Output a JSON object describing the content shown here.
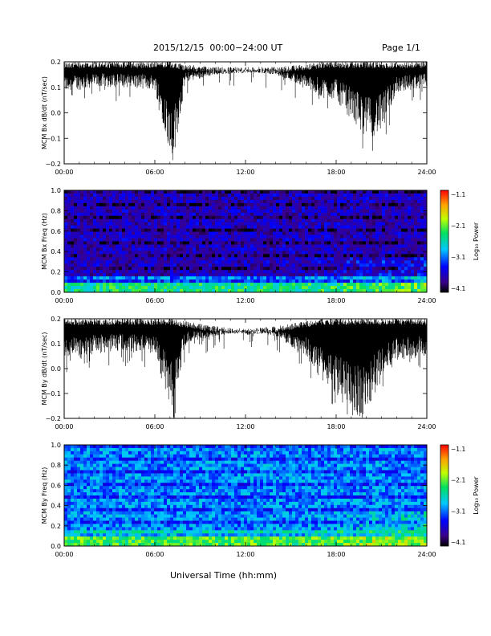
{
  "header": {
    "title": "2015/12/15  00:00−24:00 UT",
    "page_label": "Page 1/1"
  },
  "xaxis": {
    "label": "Universal Time (hh:mm)",
    "ticks": [
      "00:00",
      "06:00",
      "12:00",
      "18:00",
      "24:00"
    ],
    "range_hours": [
      0,
      24
    ]
  },
  "colorbar": {
    "label": "Log₁₀ Power",
    "ticks": [
      "−1.1",
      "−2.1",
      "−3.1",
      "−4.1"
    ],
    "range": [
      -4.1,
      -1.1
    ]
  },
  "chart_data": [
    {
      "type": "line",
      "ylabel": "MCM Bx dB/dt (nT/sec)",
      "ylim": [
        -0.2,
        0.2
      ],
      "yticks": [
        "0.2",
        "0.1",
        "0.0",
        "−0.1",
        "−0.2"
      ],
      "x": [
        0,
        2,
        4,
        6,
        7.2,
        8,
        10,
        12,
        14,
        16,
        17,
        18,
        19,
        20,
        21,
        22,
        24
      ],
      "upper_envelope": [
        0.2,
        0.2,
        0.2,
        0.2,
        0.2,
        0.19,
        0.18,
        0.18,
        0.18,
        0.19,
        0.2,
        0.2,
        0.2,
        0.2,
        0.2,
        0.2,
        0.2
      ],
      "lower_envelope": [
        0.08,
        0.1,
        0.1,
        0.09,
        -0.2,
        0.12,
        0.15,
        0.16,
        0.15,
        0.1,
        0.06,
        0.05,
        -0.02,
        -0.1,
        -0.08,
        0.08,
        0.1
      ]
    },
    {
      "type": "heatmap",
      "ylabel": "MCM Bx Freq (Hz)",
      "ylim": [
        0,
        1.0
      ],
      "yticks": [
        "1.0",
        "0.8",
        "0.6",
        "0.4",
        "0.2",
        "0.0"
      ],
      "background_power": -3.6,
      "low_frequency_power": -2.6
    },
    {
      "type": "line",
      "ylabel": "MCM By dB/dt (nT/sec)",
      "ylim": [
        -0.2,
        0.2
      ],
      "yticks": [
        "0.2",
        "0.1",
        "0.0",
        "−0.1",
        "−0.2"
      ],
      "x": [
        0,
        2,
        4,
        6,
        7.2,
        8,
        10,
        12,
        14,
        16,
        17,
        18,
        19,
        20,
        21,
        22,
        24
      ],
      "upper_envelope": [
        0.2,
        0.2,
        0.2,
        0.2,
        0.2,
        0.19,
        0.17,
        0.16,
        0.17,
        0.19,
        0.2,
        0.2,
        0.2,
        0.2,
        0.2,
        0.2,
        0.2
      ],
      "lower_envelope": [
        0.02,
        0.06,
        0.07,
        0.05,
        -0.2,
        0.1,
        0.13,
        0.15,
        0.13,
        0.05,
        -0.05,
        -0.1,
        -0.2,
        -0.2,
        -0.05,
        0.03,
        0.05
      ]
    },
    {
      "type": "heatmap",
      "ylabel": "MCM By Freq (Hz)",
      "ylim": [
        0,
        1.0
      ],
      "yticks": [
        "1.0",
        "0.8",
        "0.6",
        "0.4",
        "0.2",
        "0.0"
      ],
      "background_power": -3.0,
      "low_frequency_power": -2.4
    }
  ]
}
